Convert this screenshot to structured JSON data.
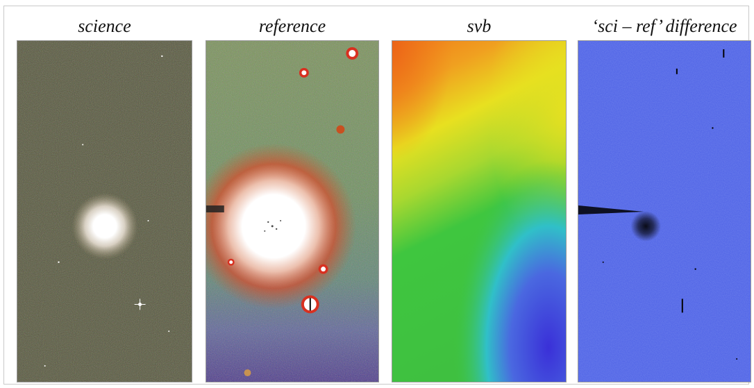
{
  "figure": {
    "panels": [
      {
        "title": "science"
      },
      {
        "title": "reference"
      },
      {
        "title": "svb"
      },
      {
        "title": "‘sci – ref’ difference"
      }
    ]
  },
  "colors": {
    "science_bg": "#5b5a47",
    "reference_bg": "#6e8a5e",
    "svb_orange": "#f07a1a",
    "svb_yellow": "#e8e020",
    "svb_green": "#3fc63f",
    "svb_blue": "#4040e0",
    "diff_bg": "#4f63e6"
  }
}
